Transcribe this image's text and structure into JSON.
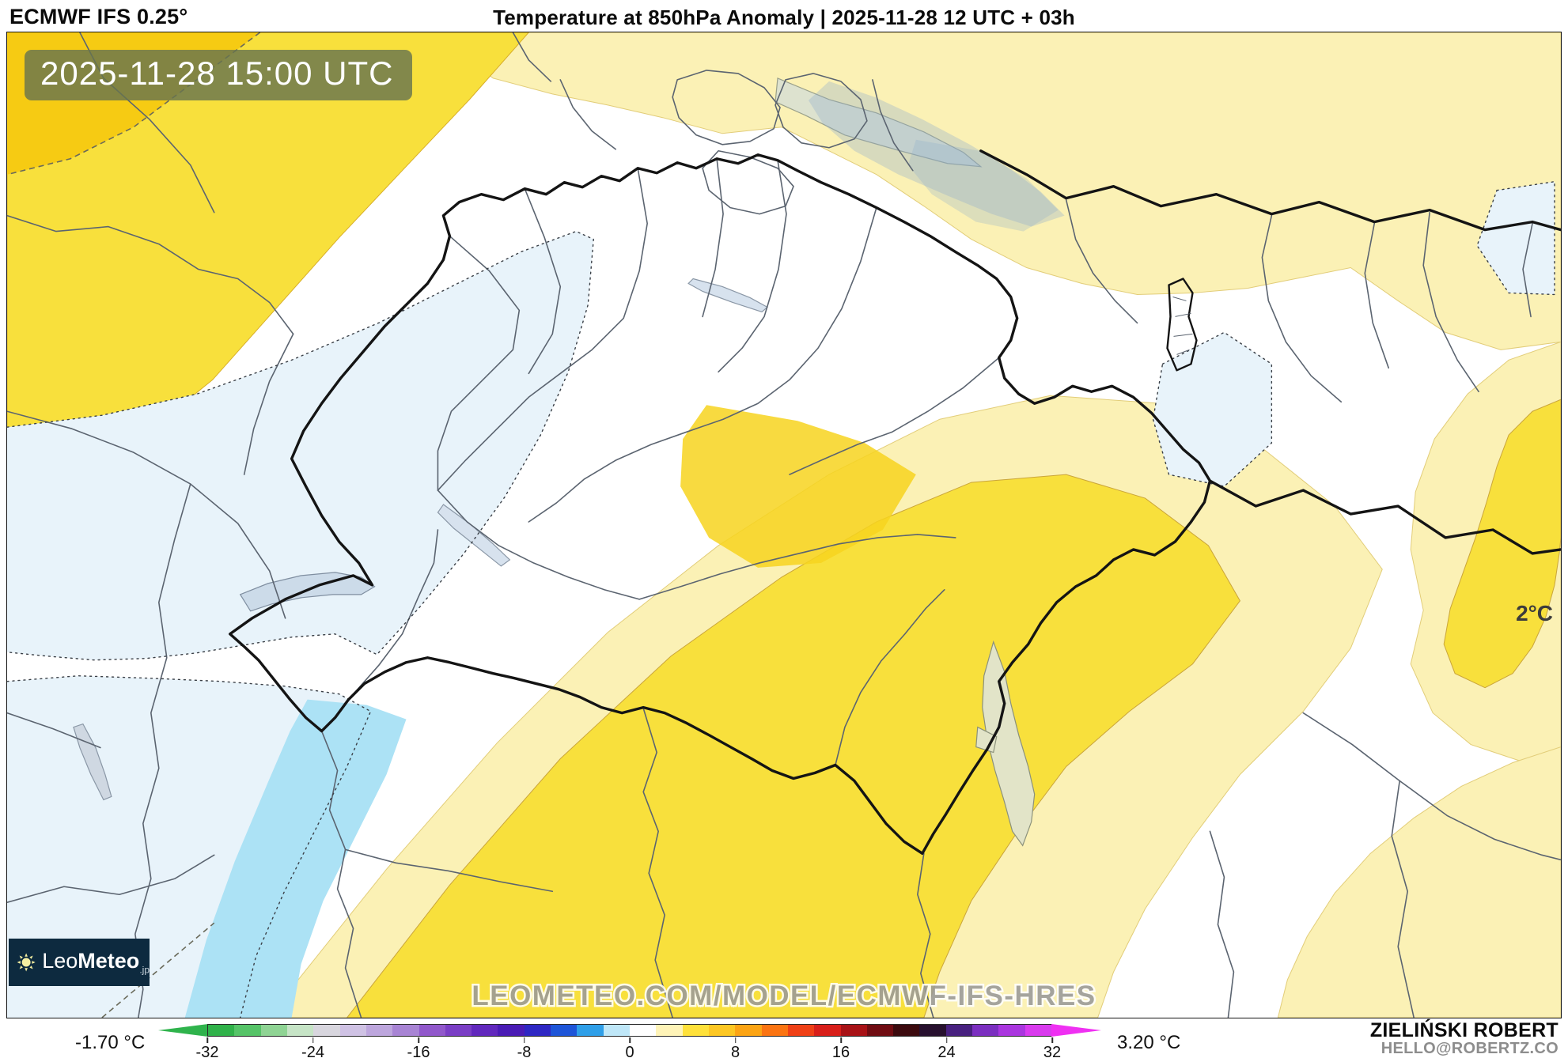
{
  "header": {
    "model_label": "ECMWF IFS 0.25°",
    "title": "Temperature at 850hPa Anomaly | 2025-11-28 12 UTC + 03h"
  },
  "map": {
    "timestamp_badge": "2025-11-28 15:00 UTC",
    "contour_label": "2°C",
    "watermark": "LEOMETEO.COM/MODEL/ECMWF-IFS-HRES",
    "logo": {
      "leo": "Leo",
      "meteo": "Meteo",
      "suffix": ".jp"
    },
    "palette": {
      "anomaly_pale_yellow": "#FBF1B5",
      "anomaly_yellow": "#F8E03C",
      "anomaly_deep_yellow": "#F6CB13",
      "anomaly_pale_blue": "#E8F3FA",
      "anomaly_cyan": "#ACE2F5",
      "country_border": "#141414",
      "region_border": "#5b6470",
      "badge_background": "#68744E"
    }
  },
  "colorbar": {
    "min_label": "-1.70 °C",
    "max_label": "3.20 °C",
    "ticks": [
      "-32",
      "-24",
      "-16",
      "-8",
      "0",
      "8",
      "16",
      "24",
      "32"
    ],
    "left_arrow_color": "#2fb34c",
    "right_arrow_color": "#ef30f2",
    "segments": [
      "#30b24a",
      "#56c468",
      "#8fd494",
      "#c6e4c6",
      "#d8d6de",
      "#cfc2e4",
      "#bda6dd",
      "#a884d4",
      "#9158cb",
      "#7a3ec5",
      "#6128bd",
      "#4a1cb5",
      "#2e27c3",
      "#1e55d8",
      "#2f9fe8",
      "#bfe7f8",
      "#ffffff",
      "#fff4b8",
      "#ffe13a",
      "#fdc723",
      "#fca414",
      "#fb7412",
      "#ef4016",
      "#d81f1a",
      "#a81216",
      "#700c12",
      "#3c0a0e",
      "#27102e",
      "#48207f",
      "#7b2fc0",
      "#aa36df",
      "#d93bee"
    ]
  },
  "credits": {
    "author": "ZIELIŃSKI ROBERT",
    "contact": "HELLO@ROBERTZ.CO"
  }
}
